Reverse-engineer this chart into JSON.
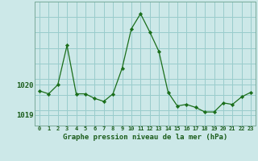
{
  "hours": [
    0,
    1,
    2,
    3,
    4,
    5,
    6,
    7,
    8,
    9,
    10,
    11,
    12,
    13,
    14,
    15,
    16,
    17,
    18,
    19,
    20,
    21,
    22,
    23
  ],
  "pressure": [
    1019.8,
    1019.7,
    1020.0,
    1021.3,
    1019.7,
    1019.7,
    1019.55,
    1019.45,
    1019.7,
    1020.55,
    1021.85,
    1022.35,
    1021.75,
    1021.1,
    1019.75,
    1019.3,
    1019.35,
    1019.25,
    1019.1,
    1019.1,
    1019.4,
    1019.35,
    1019.6,
    1019.75
  ],
  "line_color": "#1a6e1a",
  "marker_color": "#1a6e1a",
  "bg_color": "#cce8e8",
  "grid_color": "#99cccc",
  "xlabel": "Graphe pression niveau de la mer (hPa)",
  "xlabel_color": "#1a5c1a",
  "tick_color": "#1a5c1a",
  "ylim": [
    1018.65,
    1022.75
  ],
  "yticks": [
    1019,
    1020
  ],
  "xtick_labels": [
    "0",
    "1",
    "2",
    "3",
    "4",
    "5",
    "6",
    "7",
    "8",
    "9",
    "10",
    "11",
    "12",
    "13",
    "14",
    "15",
    "16",
    "17",
    "18",
    "19",
    "20",
    "21",
    "22",
    "23"
  ]
}
